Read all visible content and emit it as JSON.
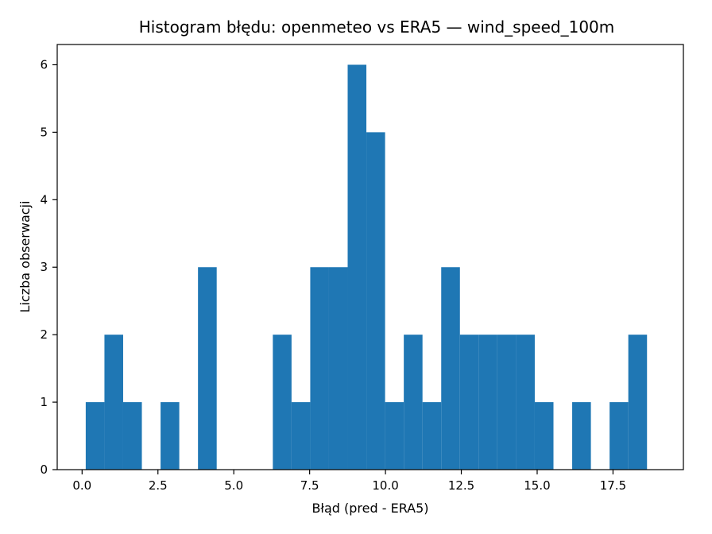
{
  "chart_data": {
    "type": "bar",
    "title": "Histogram błędu: openmeteo vs ERA5 — wind_speed_100m",
    "xlabel": "Błąd (pred - ERA5)",
    "ylabel": "Liczba obserwacji",
    "bin_start": 0.12,
    "bin_width": 0.6167,
    "counts": [
      1,
      2,
      1,
      0,
      1,
      0,
      3,
      0,
      0,
      0,
      2,
      1,
      3,
      3,
      6,
      5,
      1,
      2,
      1,
      3,
      2,
      2,
      2,
      2,
      1,
      0,
      1,
      0,
      1,
      2
    ],
    "xlim": [
      -0.82,
      19.82
    ],
    "ylim": [
      0,
      6.3
    ],
    "xticks": [
      0.0,
      2.5,
      5.0,
      7.5,
      10.0,
      12.5,
      15.0,
      17.5
    ],
    "xtick_labels": [
      "0.0",
      "2.5",
      "5.0",
      "7.5",
      "10.0",
      "12.5",
      "15.0",
      "17.5"
    ],
    "yticks": [
      0,
      1,
      2,
      3,
      4,
      5,
      6
    ],
    "ytick_labels": [
      "0",
      "1",
      "2",
      "3",
      "4",
      "5",
      "6"
    ],
    "bar_color": "#1f77b4",
    "grid": false,
    "legend": "none"
  }
}
